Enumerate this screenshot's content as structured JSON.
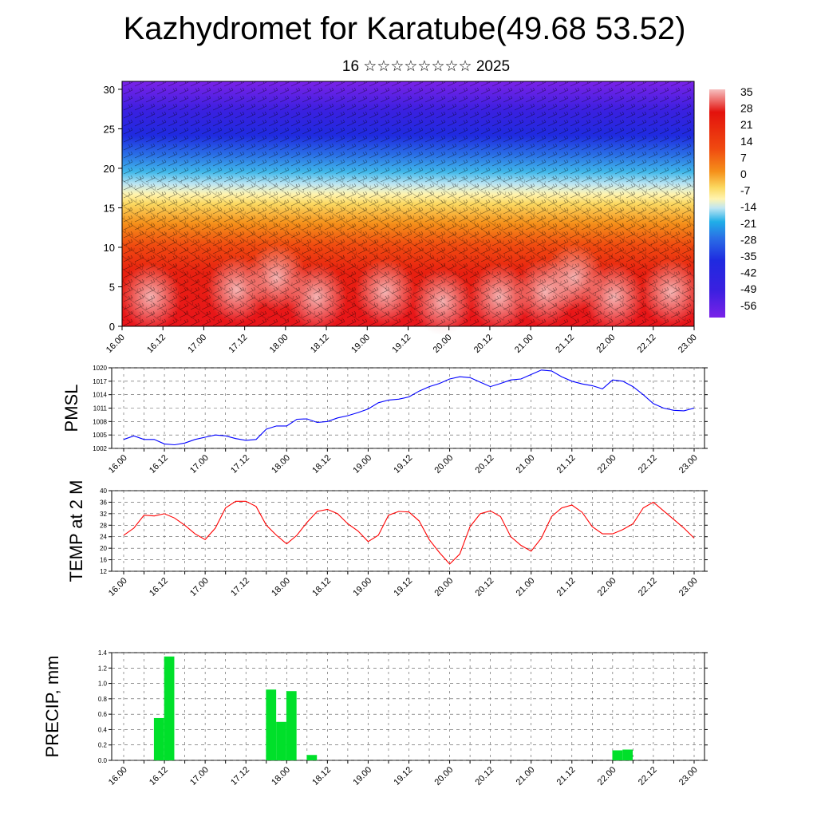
{
  "title": "Kazhydromet for Karatube(49.68 53.52)",
  "subtitle": "16 ☆☆☆☆☆☆☆☆ 2025",
  "time_labels": [
    "16.00",
    "16.12",
    "17.00",
    "17.12",
    "18.00",
    "18.12",
    "19.00",
    "19.12",
    "20.00",
    "20.12",
    "21.00",
    "21.12",
    "22.00",
    "22.12",
    "23.00"
  ],
  "chart_data": [
    {
      "type": "heatmap",
      "name": "cross-section",
      "xlabel": "",
      "ylabel": "",
      "y_ticks": [
        0,
        5,
        10,
        15,
        20,
        25,
        30
      ],
      "ylim": [
        0,
        31
      ],
      "colorbar_labels": [
        "35",
        "28",
        "21",
        "14",
        "7",
        "0",
        "-7",
        "-14",
        "-21",
        "-28",
        "-35",
        "-42",
        "-49",
        "-56"
      ],
      "colorbar_range": [
        -60,
        37
      ],
      "description_levels": "temperature shading with wind barbs overlay",
      "colors": {
        "warm_top": "#f4b6b6",
        "red": "#e3120d",
        "orange": "#f5820f",
        "yellow": "#fff2a0",
        "light_blue": "#9fd6f0",
        "cyan": "#20aee8",
        "blue": "#2030e0",
        "violet": "#7a20e6"
      }
    },
    {
      "type": "line",
      "ylabel": "PMSL",
      "y_ticks": [
        1002,
        1005,
        1008,
        1011,
        1014,
        1017,
        1020
      ],
      "ylim": [
        1002,
        1020
      ],
      "color": "#0000ff",
      "x": [
        0,
        3,
        6,
        9,
        12,
        15,
        18,
        21,
        24,
        27,
        30,
        33,
        36,
        39,
        42,
        45,
        48,
        51,
        54,
        57,
        60,
        63,
        66,
        69,
        72,
        75,
        78,
        81,
        84,
        87,
        90,
        93,
        96,
        99,
        102,
        105,
        108,
        111,
        114,
        117,
        120,
        123,
        126,
        129,
        132,
        135,
        138,
        141,
        144,
        147,
        150,
        153,
        156,
        159,
        162,
        165,
        168
      ],
      "values": [
        1004.0,
        1004.8,
        1004.0,
        1004.0,
        1003.0,
        1002.8,
        1003.2,
        1004.0,
        1004.5,
        1005.0,
        1004.8,
        1004.2,
        1003.8,
        1004.0,
        1006.3,
        1007.0,
        1007.0,
        1008.5,
        1008.6,
        1007.8,
        1008.0,
        1008.8,
        1009.3,
        1010.0,
        1010.8,
        1012.2,
        1012.8,
        1013.0,
        1013.5,
        1014.8,
        1015.8,
        1016.5,
        1017.5,
        1018.0,
        1017.8,
        1016.8,
        1015.8,
        1016.5,
        1017.3,
        1017.5,
        1018.5,
        1019.5,
        1019.3,
        1018.0,
        1017.0,
        1016.4,
        1016.0,
        1015.3,
        1017.3,
        1017.0,
        1015.8,
        1014.0,
        1012.0,
        1011.0,
        1010.5,
        1010.4,
        1011.0
      ]
    },
    {
      "type": "line",
      "ylabel": "TEMP at 2 M",
      "y_ticks": [
        12,
        16,
        20,
        24,
        28,
        32,
        36,
        40
      ],
      "ylim": [
        12,
        40
      ],
      "color": "#ff0000",
      "x": [
        0,
        3,
        6,
        9,
        12,
        15,
        18,
        21,
        24,
        27,
        30,
        33,
        36,
        39,
        42,
        45,
        48,
        51,
        54,
        57,
        60,
        63,
        66,
        69,
        72,
        75,
        78,
        81,
        84,
        87,
        90,
        93,
        96,
        99,
        102,
        105,
        108,
        111,
        114,
        117,
        120,
        123,
        126,
        129,
        132,
        135,
        138,
        141,
        144,
        147,
        150,
        153,
        156,
        159,
        162,
        165,
        168
      ],
      "values": [
        24.5,
        27.0,
        31.5,
        31.2,
        32.0,
        30.5,
        28.0,
        25.0,
        23.0,
        27.0,
        34.0,
        36.3,
        36.3,
        34.5,
        28.0,
        24.5,
        21.5,
        24.5,
        29.0,
        32.8,
        33.5,
        32.0,
        28.5,
        26.0,
        22.3,
        24.5,
        31.5,
        32.8,
        32.6,
        29.5,
        23.0,
        18.5,
        14.5,
        18.0,
        27.5,
        32.0,
        33.0,
        31.0,
        24.0,
        21.0,
        19.0,
        23.5,
        31.0,
        34.0,
        35.0,
        32.5,
        27.5,
        25.0,
        25.0,
        26.5,
        28.5,
        34.0,
        36.0,
        33.0,
        30.0,
        27.0,
        23.5
      ]
    },
    {
      "type": "bar",
      "ylabel": "PRECIP, mm",
      "y_ticks": [
        "0.0",
        "0.2",
        "0.4",
        "0.6",
        "0.8",
        "1.0",
        "1.2",
        "1.4"
      ],
      "ylim": [
        0,
        1.4
      ],
      "color": "#00e02a",
      "bars": [
        {
          "x": 9,
          "value": 0.55
        },
        {
          "x": 12,
          "value": 1.35
        },
        {
          "x": 42,
          "value": 0.92
        },
        {
          "x": 45,
          "value": 0.5
        },
        {
          "x": 48,
          "value": 0.9
        },
        {
          "x": 54,
          "value": 0.07
        },
        {
          "x": 144,
          "value": 0.13
        },
        {
          "x": 147,
          "value": 0.14
        }
      ]
    }
  ]
}
